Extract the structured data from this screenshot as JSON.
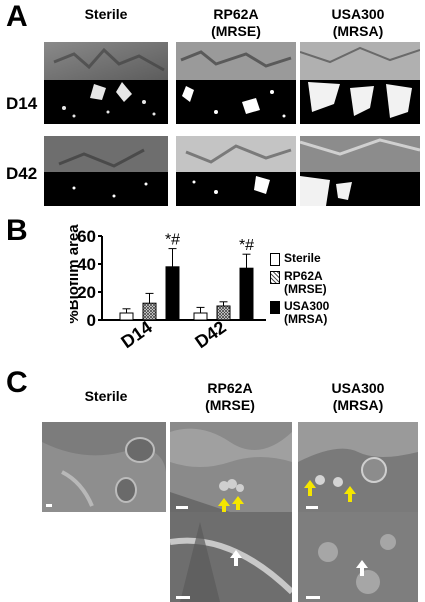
{
  "panel_labels": {
    "a": "A",
    "b": "B",
    "c": "C"
  },
  "panel_a": {
    "columns": [
      "Sterile",
      "RP62A\n(MRSE)",
      "USA300\n(MRSA)"
    ],
    "rows": [
      "D14",
      "D42"
    ]
  },
  "panel_c": {
    "columns": [
      "Sterile",
      "RP62A\n(MRSE)",
      "USA300\n(MRSA)"
    ]
  },
  "colors": {
    "sterile": "#ffffff",
    "mrse_pattern": "#555555",
    "mrsa": "#000000",
    "arrow_yellow": "#f5e600",
    "arrow_white": "#ffffff"
  },
  "chart_data": {
    "type": "bar",
    "categories": [
      "D14",
      "D42"
    ],
    "series": [
      {
        "name": "Sterile",
        "values": [
          5,
          5
        ],
        "errors": [
          3,
          4
        ]
      },
      {
        "name": "RP62A\n(MRSE)",
        "values": [
          12,
          10
        ],
        "errors": [
          7,
          3
        ]
      },
      {
        "name": "USA300\n(MRSA)",
        "values": [
          38,
          37
        ],
        "errors": [
          13,
          10
        ]
      }
    ],
    "annotations": [
      {
        "category": "D14",
        "series": "USA300\n(MRSA)",
        "text": "*#"
      },
      {
        "category": "D42",
        "series": "USA300\n(MRSA)",
        "text": "*#"
      }
    ],
    "ylabel": "%Biofilm area",
    "xlabel": "",
    "yticks": [
      0,
      20,
      40,
      60
    ],
    "ylim": [
      0,
      60
    ],
    "legend_position": "right"
  }
}
